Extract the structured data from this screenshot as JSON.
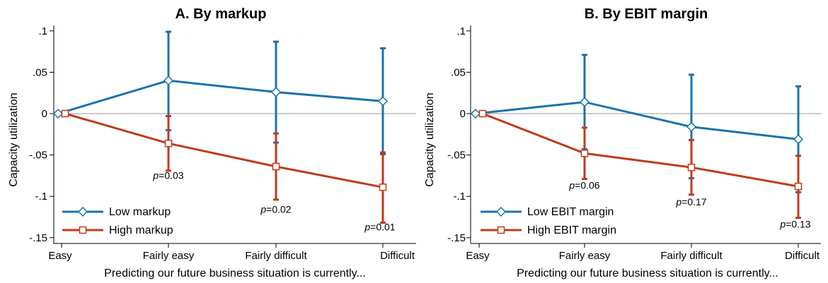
{
  "chart_data": [
    {
      "type": "line",
      "title": "A. By markup",
      "xlabel": "Predicting our future business situation is currently...",
      "ylabel": "Capacity utilization",
      "categories": [
        "Easy",
        "Fairly easy",
        "Fairly difficult",
        "Difficult"
      ],
      "ylim": [
        -0.155,
        0.105
      ],
      "yticks": [
        0.1,
        0.05,
        0,
        -0.05,
        -0.1,
        -0.15
      ],
      "ytick_labels": [
        ".1",
        ".05",
        "0",
        "-.05",
        "-.1",
        "-.15"
      ],
      "reference_line_y": 0,
      "legend_position": "bottom-left",
      "series": [
        {
          "name": "Low markup",
          "color": "#1a72ae",
          "marker": "diamond",
          "values": [
            0,
            0.04,
            0.026,
            0.015
          ],
          "ci_low": [
            null,
            -0.02,
            -0.035,
            -0.049
          ],
          "ci_high": [
            null,
            0.099,
            0.087,
            0.079
          ]
        },
        {
          "name": "High markup",
          "color": "#c13a1b",
          "marker": "square",
          "values": [
            0,
            -0.036,
            -0.064,
            -0.089
          ],
          "ci_low": [
            null,
            -0.069,
            -0.104,
            -0.132
          ],
          "ci_high": [
            null,
            -0.003,
            -0.024,
            -0.047
          ]
        }
      ],
      "annotations": [
        {
          "category": "Fairly easy",
          "y": -0.079,
          "prefix": "p",
          "value": "=0.03"
        },
        {
          "category": "Fairly difficult",
          "y": -0.12,
          "prefix": "p",
          "value": "=0.02"
        },
        {
          "category": "Difficult",
          "y": -0.141,
          "prefix": "p",
          "value": "=0.01"
        }
      ]
    },
    {
      "type": "line",
      "title": "B. By EBIT margin",
      "xlabel": "Predicting our future business situation is currently...",
      "ylabel": "Capacity utilization",
      "categories": [
        "Easy",
        "Fairly easy",
        "Fairly difficult",
        "Difficult"
      ],
      "ylim": [
        -0.155,
        0.105
      ],
      "yticks": [
        0.1,
        0.05,
        0,
        -0.05,
        -0.1,
        -0.15
      ],
      "ytick_labels": [
        ".1",
        ".05",
        "0",
        "-.05",
        "-.1",
        "-.15"
      ],
      "reference_line_y": 0,
      "legend_position": "bottom-left",
      "series": [
        {
          "name": "Low EBIT margin",
          "color": "#1a72ae",
          "marker": "diamond",
          "values": [
            0,
            0.014,
            -0.016,
            -0.031
          ],
          "ci_low": [
            null,
            -0.043,
            -0.078,
            -0.095
          ],
          "ci_high": [
            null,
            0.071,
            0.047,
            0.033
          ]
        },
        {
          "name": "High EBIT margin",
          "color": "#c13a1b",
          "marker": "square",
          "values": [
            0,
            -0.048,
            -0.065,
            -0.088
          ],
          "ci_low": [
            null,
            -0.079,
            -0.098,
            -0.126
          ],
          "ci_high": [
            null,
            -0.017,
            -0.032,
            -0.051
          ]
        }
      ],
      "annotations": [
        {
          "category": "Fairly easy",
          "y": -0.091,
          "prefix": "p",
          "value": "=0.06"
        },
        {
          "category": "Fairly difficult",
          "y": -0.111,
          "prefix": "p",
          "value": "=0.17"
        },
        {
          "category": "Difficult",
          "y": -0.138,
          "prefix": "p",
          "value": "=0.13"
        }
      ]
    }
  ]
}
